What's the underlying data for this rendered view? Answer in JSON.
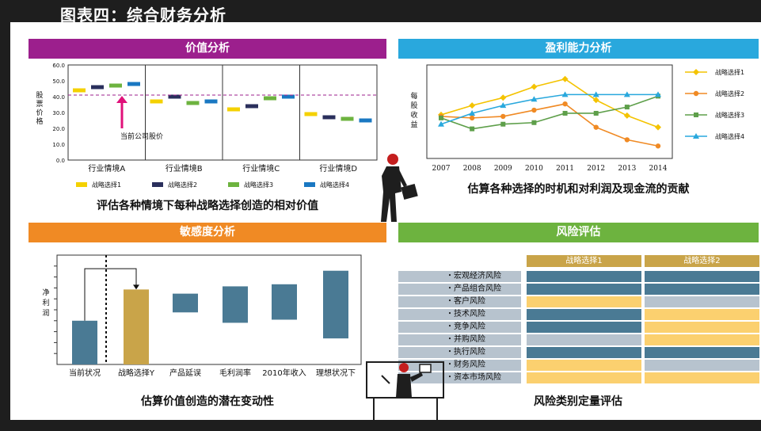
{
  "page_title": "图表四：综合财务分析",
  "colors": {
    "panel1": "#9c1f8d",
    "panel2": "#29a8dd",
    "panel3": "#f08a24",
    "panel4": "#6db33f",
    "s1": "#f4d100",
    "s2": "#2a2f5c",
    "s3": "#6db33f",
    "s4": "#1a78c2",
    "risk_blue": "#4a7a94",
    "risk_gold": "#fbd06f",
    "risk_gray": "#b7c3ce",
    "header_gold": "#c9a449"
  },
  "value_panel": {
    "title": "价值分析",
    "ylabel": "股票价格",
    "annotation": "当前公司股价",
    "caption": "评估各种情境下每种战略选择创造的相对价值"
  },
  "profit_panel": {
    "title": "盈利能力分析",
    "ylabel": "每股收益",
    "caption": "估算各种选择的时机和对利润及现金流的贡献"
  },
  "sens_panel": {
    "title": "敏感度分析",
    "ylabel": "净利润",
    "caption": "估算价值创造的潜在变动性"
  },
  "risk_panel": {
    "title": "风险评估",
    "caption": "风险类别定量评估",
    "col_headers": [
      "战略选择1",
      "战略选择2"
    ],
    "rows": [
      {
        "label": "・宏观经济风险",
        "c1": "blue",
        "c2": "blue"
      },
      {
        "label": "・产品组合风险",
        "c1": "blue",
        "c2": "blue"
      },
      {
        "label": "・客户风险",
        "c1": "gold",
        "c2": "gray"
      },
      {
        "label": "・技术风险",
        "c1": "blue",
        "c2": "gold"
      },
      {
        "label": "・竞争风险",
        "c1": "blue",
        "c2": "gold"
      },
      {
        "label": "・并购风险",
        "c1": "gray",
        "c2": "gold"
      },
      {
        "label": "・执行风险",
        "c1": "blue",
        "c2": "blue"
      },
      {
        "label": "・财务风险",
        "c1": "gold",
        "c2": "gray"
      },
      {
        "label": "・资本市场风险",
        "c1": "gold",
        "c2": "gold"
      }
    ]
  },
  "chart_data": [
    {
      "type": "bar",
      "categories": [
        "行业情境A",
        "行业情境B",
        "行业情境C",
        "行业情境D"
      ],
      "series": [
        {
          "name": "战略选择1",
          "values": [
            44,
            37,
            32,
            29
          ]
        },
        {
          "name": "战略选择2",
          "values": [
            46,
            40,
            34,
            27
          ]
        },
        {
          "name": "战略选择3",
          "values": [
            47,
            36,
            39,
            26
          ]
        },
        {
          "name": "战略选择4",
          "values": [
            48,
            37,
            40,
            25
          ]
        }
      ],
      "ylim": [
        0,
        60
      ],
      "yticks": [
        "0.0",
        "10.0",
        "20.0",
        "30.0",
        "40.0",
        "50.0",
        "60.0"
      ],
      "reference_line": 41
    },
    {
      "type": "line",
      "x": [
        "2007",
        "2008",
        "2009",
        "2010",
        "2011",
        "2012",
        "2013",
        "2014"
      ],
      "series": [
        {
          "name": "战略选择1",
          "values": [
            36,
            48,
            58,
            72,
            82,
            55,
            35,
            20
          ]
        },
        {
          "name": "战略选择2",
          "values": [
            34,
            32,
            34,
            42,
            50,
            20,
            4,
            -4
          ]
        },
        {
          "name": "战略选择3",
          "values": [
            32,
            18,
            24,
            26,
            38,
            38,
            46,
            60
          ]
        },
        {
          "name": "战略选择4",
          "values": [
            24,
            38,
            48,
            56,
            62,
            62,
            62,
            62
          ]
        }
      ],
      "ylim": [
        -20,
        100
      ],
      "legend": "right"
    },
    {
      "type": "bar",
      "categories": [
        "当前状况",
        "战略选择Y",
        "产品延误",
        "毛利润率",
        "2010年收入",
        "理想状况下"
      ],
      "ranges": [
        [
          0,
          42
        ],
        [
          0,
          72
        ],
        [
          50,
          68
        ],
        [
          40,
          75
        ],
        [
          43,
          77
        ],
        [
          25,
          90
        ]
      ],
      "ylim": [
        0,
        105
      ]
    }
  ]
}
